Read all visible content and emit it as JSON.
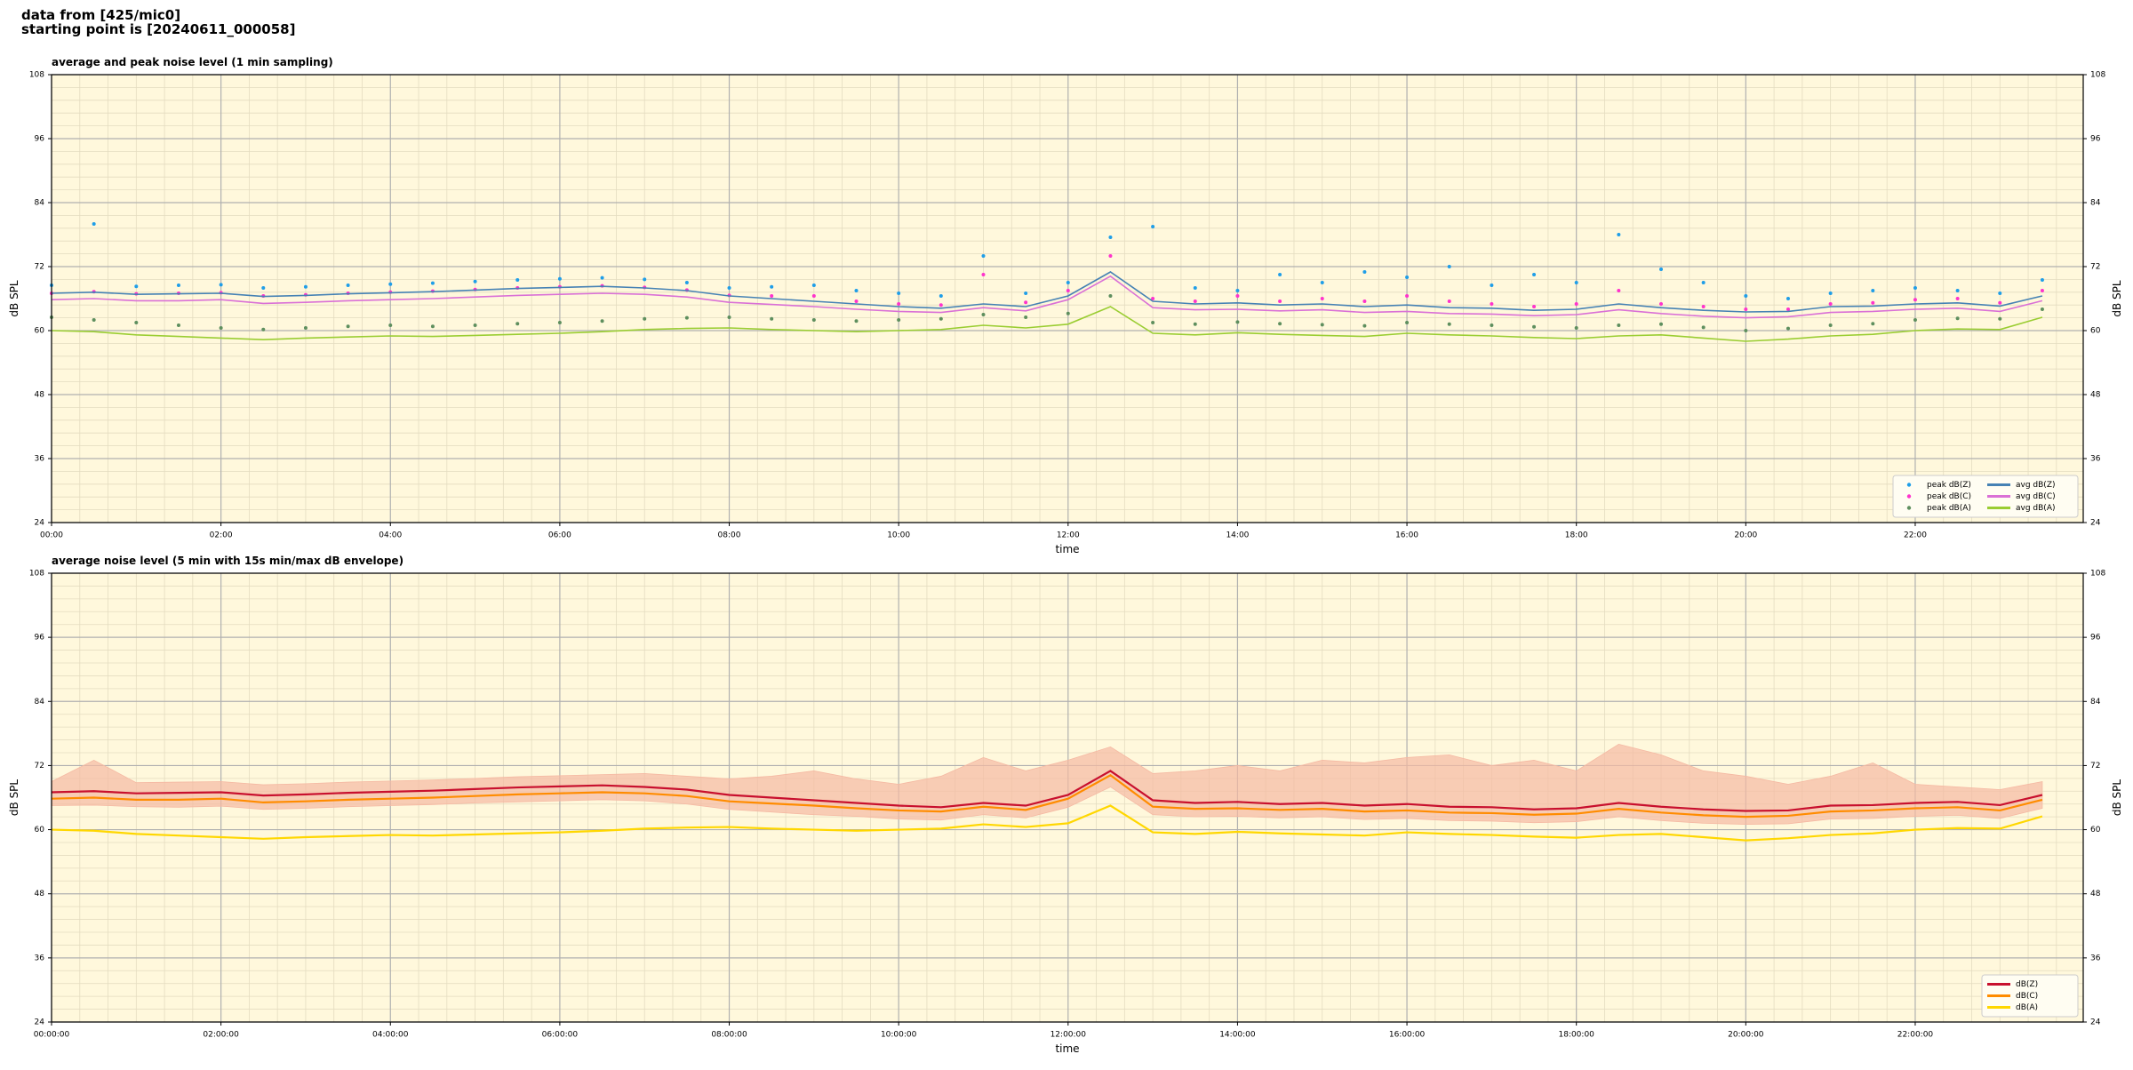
{
  "header": [
    "data from [425/mic0]",
    "starting point is [20240611_000058]"
  ],
  "chart_data": [
    {
      "type": "line",
      "title": "average and peak noise level (1 min sampling)",
      "xlabel": "time",
      "ylabel": "dB SPL",
      "legend": "lower right",
      "legend_columns": 2,
      "grid": true,
      "background": "#fff8dc",
      "x": [
        "00:00",
        "00:30",
        "01:00",
        "01:30",
        "02:00",
        "02:30",
        "03:00",
        "03:30",
        "04:00",
        "04:30",
        "05:00",
        "05:30",
        "06:00",
        "06:30",
        "07:00",
        "07:30",
        "08:00",
        "08:30",
        "09:00",
        "09:30",
        "10:00",
        "10:30",
        "11:00",
        "11:30",
        "12:00",
        "12:30",
        "13:00",
        "13:30",
        "14:00",
        "14:30",
        "15:00",
        "15:30",
        "16:00",
        "16:30",
        "17:00",
        "17:30",
        "18:00",
        "18:30",
        "19:00",
        "19:30",
        "20:00",
        "20:30",
        "21:00",
        "21:30",
        "22:00",
        "22:30",
        "23:00",
        "23:30"
      ],
      "xlim": [
        "00:00",
        "23:59"
      ],
      "xticks": [
        "00:00",
        "02:00",
        "04:00",
        "06:00",
        "08:00",
        "10:00",
        "12:00",
        "14:00",
        "16:00",
        "18:00",
        "20:00",
        "22:00"
      ],
      "ylim": [
        24,
        108
      ],
      "yticks": [
        24,
        36,
        48,
        60,
        72,
        84,
        96,
        108
      ],
      "series": [
        {
          "name": "peak dB(Z)",
          "kind": "scatter",
          "color": "#1f9ee8",
          "values": [
            68.5,
            80.0,
            68.3,
            68.5,
            68.6,
            68.0,
            68.2,
            68.5,
            68.7,
            68.9,
            69.2,
            69.5,
            69.7,
            69.9,
            69.6,
            69.0,
            68.0,
            68.2,
            68.5,
            67.5,
            67.0,
            66.5,
            74.0,
            67.0,
            69.0,
            77.5,
            79.5,
            68.0,
            67.5,
            70.5,
            69.0,
            71.0,
            70.0,
            72.0,
            68.5,
            70.5,
            69.0,
            78.0,
            71.5,
            69.0,
            66.5,
            66.0,
            67.0,
            67.5,
            68.0,
            67.5,
            67.0,
            69.5
          ]
        },
        {
          "name": "peak dB(C)",
          "kind": "scatter",
          "color": "#ff33cc",
          "values": [
            67.0,
            67.3,
            66.9,
            67.0,
            67.1,
            66.5,
            66.7,
            67.0,
            67.2,
            67.4,
            67.7,
            68.0,
            68.2,
            68.4,
            68.1,
            67.6,
            66.6,
            66.5,
            66.5,
            65.5,
            65.0,
            64.8,
            70.5,
            65.3,
            67.5,
            74.0,
            66.0,
            65.5,
            66.5,
            65.5,
            66.0,
            65.5,
            66.5,
            65.5,
            65.0,
            64.5,
            65.0,
            67.5,
            65.0,
            64.5,
            64.0,
            64.0,
            65.0,
            65.2,
            65.8,
            66.0,
            65.2,
            67.5
          ]
        },
        {
          "name": "peak dB(A)",
          "kind": "scatter",
          "color": "#5e8f5e",
          "values": [
            62.5,
            62.0,
            61.5,
            61.0,
            60.5,
            60.2,
            60.5,
            60.8,
            61.0,
            60.8,
            61.0,
            61.3,
            61.5,
            61.8,
            62.2,
            62.4,
            62.5,
            62.2,
            62.0,
            61.8,
            62.0,
            62.2,
            63.0,
            62.5,
            63.2,
            66.5,
            61.5,
            61.2,
            61.6,
            61.3,
            61.1,
            60.9,
            61.5,
            61.2,
            61.0,
            60.7,
            60.5,
            61.0,
            61.2,
            60.6,
            60.0,
            60.4,
            61.0,
            61.3,
            62.0,
            62.3,
            62.2,
            64.0
          ]
        },
        {
          "name": "avg dB(Z)",
          "kind": "line",
          "color": "#4682b4",
          "values": [
            67.0,
            67.2,
            66.8,
            66.9,
            67.0,
            66.4,
            66.6,
            66.9,
            67.1,
            67.3,
            67.6,
            67.9,
            68.1,
            68.3,
            68.0,
            67.5,
            66.5,
            66.0,
            65.5,
            65.0,
            64.5,
            64.2,
            65.0,
            64.5,
            66.5,
            71.0,
            65.5,
            65.0,
            65.2,
            64.8,
            65.0,
            64.5,
            64.8,
            64.3,
            64.2,
            63.8,
            64.0,
            65.0,
            64.3,
            63.8,
            63.5,
            63.6,
            64.5,
            64.6,
            65.0,
            65.2,
            64.6,
            66.5
          ]
        },
        {
          "name": "avg dB(C)",
          "kind": "line",
          "color": "#da70d6",
          "values": [
            65.8,
            66.0,
            65.6,
            65.6,
            65.8,
            65.1,
            65.3,
            65.6,
            65.8,
            66.0,
            66.3,
            66.6,
            66.8,
            67.0,
            66.8,
            66.3,
            65.3,
            64.9,
            64.5,
            64.0,
            63.6,
            63.4,
            64.3,
            63.7,
            65.8,
            70.2,
            64.3,
            63.9,
            64.0,
            63.7,
            63.9,
            63.4,
            63.6,
            63.2,
            63.1,
            62.8,
            63.0,
            63.9,
            63.2,
            62.7,
            62.4,
            62.6,
            63.4,
            63.6,
            64.0,
            64.2,
            63.6,
            65.6
          ]
        },
        {
          "name": "avg dB(A)",
          "kind": "line",
          "color": "#9acd32",
          "values": [
            60.0,
            59.8,
            59.2,
            58.9,
            58.6,
            58.3,
            58.6,
            58.8,
            59.0,
            58.9,
            59.1,
            59.3,
            59.5,
            59.8,
            60.2,
            60.4,
            60.5,
            60.2,
            60.0,
            59.8,
            60.0,
            60.2,
            61.0,
            60.5,
            61.2,
            64.5,
            59.5,
            59.2,
            59.6,
            59.3,
            59.1,
            58.9,
            59.5,
            59.2,
            59.0,
            58.7,
            58.5,
            59.0,
            59.2,
            58.6,
            58.0,
            58.4,
            59.0,
            59.3,
            60.0,
            60.3,
            60.2,
            62.5
          ]
        }
      ]
    },
    {
      "type": "line",
      "title": "average noise level (5 min with 15s min/max dB envelope)",
      "xlabel": "time",
      "ylabel": "dB SPL",
      "legend": "lower right",
      "legend_columns": 1,
      "grid": true,
      "background": "#fff8dc",
      "x": [
        "00:00:00",
        "00:30:00",
        "01:00:00",
        "01:30:00",
        "02:00:00",
        "02:30:00",
        "03:00:00",
        "03:30:00",
        "04:00:00",
        "04:30:00",
        "05:00:00",
        "05:30:00",
        "06:00:00",
        "06:30:00",
        "07:00:00",
        "07:30:00",
        "08:00:00",
        "08:30:00",
        "09:00:00",
        "09:30:00",
        "10:00:00",
        "10:30:00",
        "11:00:00",
        "11:30:00",
        "12:00:00",
        "12:30:00",
        "13:00:00",
        "13:30:00",
        "14:00:00",
        "14:30:00",
        "15:00:00",
        "15:30:00",
        "16:00:00",
        "16:30:00",
        "17:00:00",
        "17:30:00",
        "18:00:00",
        "18:30:00",
        "19:00:00",
        "19:30:00",
        "20:00:00",
        "20:30:00",
        "21:00:00",
        "21:30:00",
        "22:00:00",
        "22:30:00",
        "23:00:00",
        "23:30:00"
      ],
      "xlim": [
        "00:00:00",
        "23:59:00"
      ],
      "xticks": [
        "00:00:00",
        "02:00:00",
        "04:00:00",
        "06:00:00",
        "08:00:00",
        "10:00:00",
        "12:00:00",
        "14:00:00",
        "16:00:00",
        "18:00:00",
        "20:00:00",
        "22:00:00"
      ],
      "ylim": [
        24,
        108
      ],
      "yticks": [
        24,
        36,
        48,
        60,
        72,
        84,
        96,
        108
      ],
      "envelope": {
        "color": "#f5b9a3",
        "min": [
          64.5,
          64.6,
          64.3,
          64.2,
          64.4,
          63.8,
          64.0,
          64.3,
          64.5,
          64.7,
          65.0,
          65.2,
          65.4,
          65.6,
          65.4,
          64.8,
          63.8,
          63.3,
          62.8,
          62.5,
          62.0,
          61.8,
          62.8,
          62.2,
          64.2,
          68.0,
          62.8,
          62.4,
          62.5,
          62.2,
          62.4,
          61.9,
          62.1,
          61.7,
          61.6,
          61.3,
          61.5,
          62.4,
          61.7,
          61.2,
          61.0,
          61.1,
          62.0,
          62.1,
          62.5,
          62.7,
          62.1,
          64.0
        ],
        "max": [
          69.0,
          73.0,
          68.8,
          68.9,
          69.0,
          68.4,
          68.6,
          68.9,
          69.1,
          69.3,
          69.6,
          69.9,
          70.1,
          70.3,
          70.5,
          70.0,
          69.5,
          70.0,
          71.0,
          69.5,
          68.5,
          70.0,
          73.5,
          71.0,
          73.0,
          75.5,
          70.5,
          71.0,
          72.0,
          71.0,
          73.0,
          72.5,
          73.5,
          74.0,
          72.0,
          73.0,
          71.0,
          76.0,
          74.0,
          71.0,
          70.0,
          68.5,
          70.0,
          72.5,
          68.5,
          68.0,
          67.5,
          69.0
        ]
      },
      "series": [
        {
          "name": "dB(Z)",
          "kind": "line",
          "color": "#c8102e",
          "values": [
            67.0,
            67.2,
            66.8,
            66.9,
            67.0,
            66.4,
            66.6,
            66.9,
            67.1,
            67.3,
            67.6,
            67.9,
            68.1,
            68.3,
            68.0,
            67.5,
            66.5,
            66.0,
            65.5,
            65.0,
            64.5,
            64.2,
            65.0,
            64.5,
            66.5,
            71.0,
            65.5,
            65.0,
            65.2,
            64.8,
            65.0,
            64.5,
            64.8,
            64.3,
            64.2,
            63.8,
            64.0,
            65.0,
            64.3,
            63.8,
            63.5,
            63.6,
            64.5,
            64.6,
            65.0,
            65.2,
            64.6,
            66.5
          ]
        },
        {
          "name": "dB(C)",
          "kind": "line",
          "color": "#ff8c00",
          "values": [
            65.8,
            66.0,
            65.6,
            65.6,
            65.8,
            65.1,
            65.3,
            65.6,
            65.8,
            66.0,
            66.3,
            66.6,
            66.8,
            67.0,
            66.8,
            66.3,
            65.3,
            64.9,
            64.5,
            64.0,
            63.6,
            63.4,
            64.3,
            63.7,
            65.8,
            70.2,
            64.3,
            63.9,
            64.0,
            63.7,
            63.9,
            63.4,
            63.6,
            63.2,
            63.1,
            62.8,
            63.0,
            63.9,
            63.2,
            62.7,
            62.4,
            62.6,
            63.4,
            63.6,
            64.0,
            64.2,
            63.6,
            65.6
          ]
        },
        {
          "name": "dB(A)",
          "kind": "line",
          "color": "#ffd700",
          "values": [
            60.0,
            59.8,
            59.2,
            58.9,
            58.6,
            58.3,
            58.6,
            58.8,
            59.0,
            58.9,
            59.1,
            59.3,
            59.5,
            59.8,
            60.2,
            60.4,
            60.5,
            60.2,
            60.0,
            59.8,
            60.0,
            60.2,
            61.0,
            60.5,
            61.2,
            64.5,
            59.5,
            59.2,
            59.6,
            59.3,
            59.1,
            58.9,
            59.5,
            59.2,
            59.0,
            58.7,
            58.5,
            59.0,
            59.2,
            58.6,
            58.0,
            58.4,
            59.0,
            59.3,
            60.0,
            60.3,
            60.2,
            62.5
          ]
        }
      ]
    }
  ]
}
